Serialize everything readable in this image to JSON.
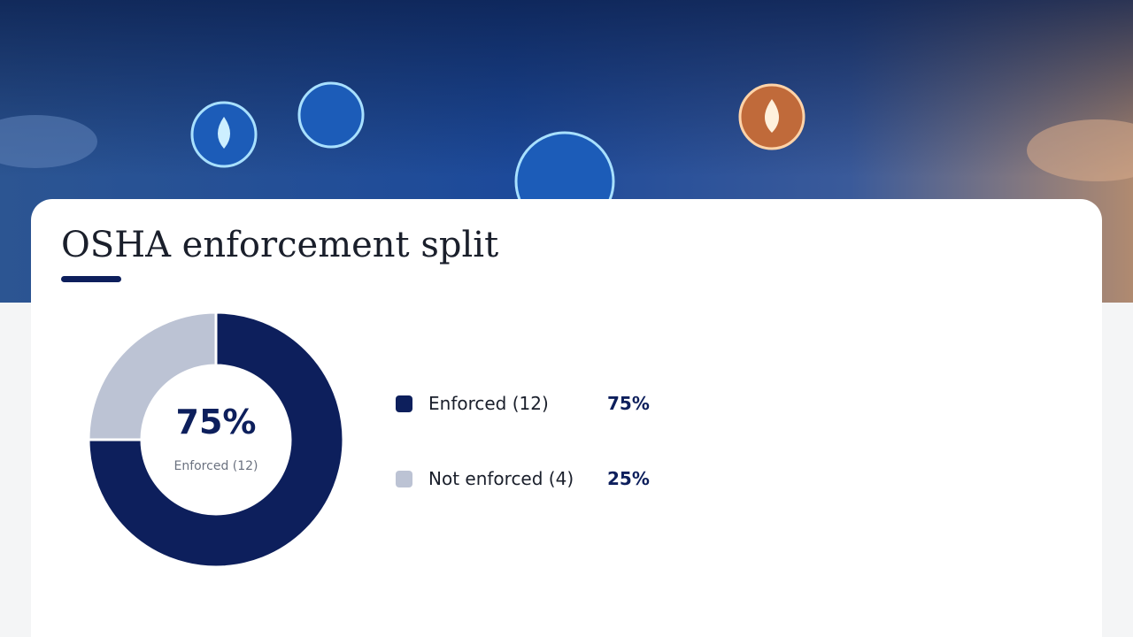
{
  "chart_data": {
    "type": "donut",
    "title": "OSHA enforcement split",
    "categories": [
      "Enforced (12)",
      "Not enforced (4)"
    ],
    "values": [
      75,
      25
    ],
    "value_labels": [
      "75%",
      "25%"
    ],
    "colors": [
      "#0d1f5c",
      "#bcc3d4"
    ]
  }
}
